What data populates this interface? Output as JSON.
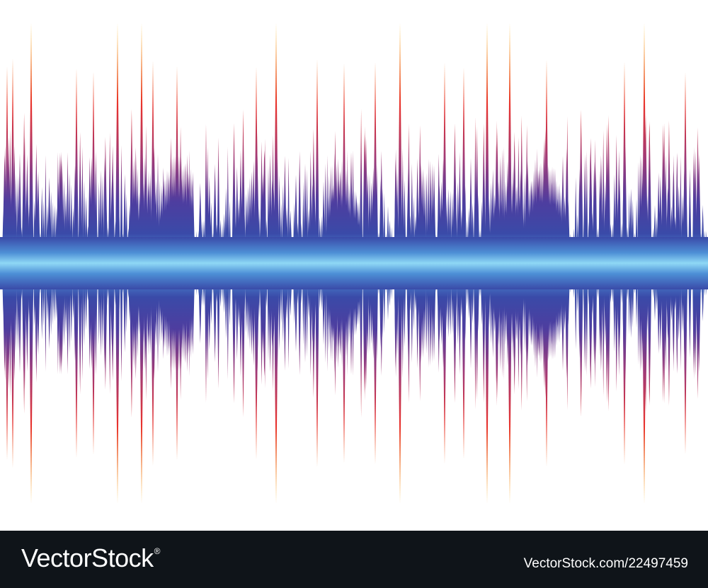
{
  "artwork": {
    "subject": "sound wave",
    "colors": {
      "background": "#ffffff",
      "center_glow": "#8fd8f5",
      "center": "#3a4aa8",
      "mid": "#5b3a9c",
      "outer": "#e8322e",
      "tip": "#ffc21a"
    }
  },
  "footer": {
    "brand": "VectorStock",
    "brand_mark": "®",
    "image_id": "VectorStock.com/22497459",
    "background": "#0f1419"
  }
}
